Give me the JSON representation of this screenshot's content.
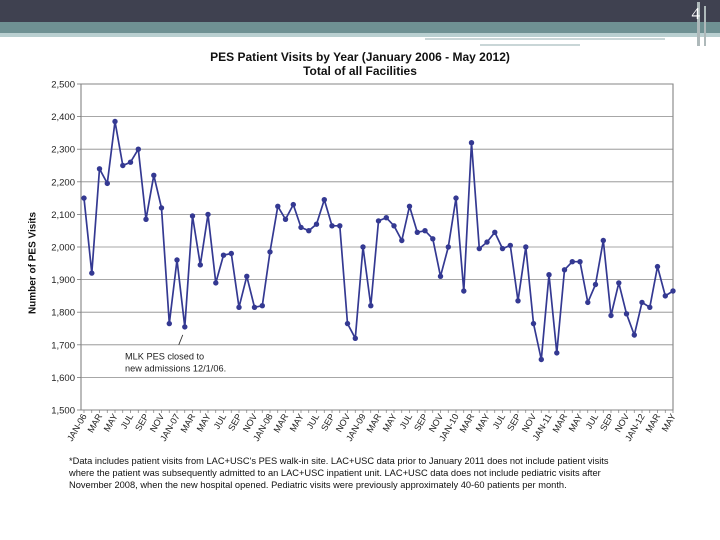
{
  "slide": {
    "number": "4"
  },
  "chart_data": {
    "type": "line",
    "title": "PES Patient Visits by Year (January 2006 -  May 2012)",
    "subtitle": "Total of all Facilities",
    "xlabel": "",
    "ylabel": "Number of PES Visits",
    "ylim": [
      1500,
      2500
    ],
    "yticks": [
      "1,500",
      "1,600",
      "1,700",
      "1,800",
      "1,900",
      "2,000",
      "2,100",
      "2,200",
      "2,300",
      "2,400",
      "2,500"
    ],
    "ytick_values": [
      1500,
      1600,
      1700,
      1800,
      1900,
      2000,
      2100,
      2200,
      2300,
      2400,
      2500
    ],
    "grid": true,
    "categories": [
      "JAN-06",
      "FEB",
      "MAR",
      "APR",
      "MAY",
      "JUN",
      "JUL",
      "AUG",
      "SEP",
      "OCT",
      "NOV",
      "DEC",
      "JAN-07",
      "FEB",
      "MAR",
      "APR",
      "MAY",
      "JUN",
      "JUL",
      "AUG",
      "SEP",
      "OCT",
      "NOV",
      "DEC",
      "JAN-08",
      "FEB",
      "MAR",
      "APR",
      "MAY",
      "JUN",
      "JUL",
      "AUG",
      "SEP",
      "OCT",
      "NOV",
      "DEC",
      "JAN-09",
      "FEB",
      "MAR",
      "APR",
      "MAY",
      "JUN",
      "JUL",
      "AUG",
      "SEP",
      "OCT",
      "NOV",
      "DEC",
      "JAN-10",
      "FEB",
      "MAR",
      "APR",
      "MAY",
      "JUN",
      "JUL",
      "AUG",
      "SEP",
      "OCT",
      "NOV",
      "DEC",
      "JAN-11",
      "FEB",
      "MAR",
      "APR",
      "MAY",
      "JUN",
      "JUL",
      "AUG",
      "SEP",
      "OCT",
      "NOV",
      "DEC",
      "JAN-12",
      "FEB",
      "MAR",
      "APR",
      "MAY"
    ],
    "xtick_labels": [
      "JAN-06",
      "MAR",
      "MAY",
      "JUL",
      "SEP",
      "NOV",
      "JAN-07",
      "MAR",
      "MAY",
      "JUL",
      "SEP",
      "NOV",
      "JAN-08",
      "MAR",
      "MAY",
      "JUL",
      "SEP",
      "NOV",
      "JAN-09",
      "MAR",
      "MAY",
      "JUL",
      "SEP",
      "NOV",
      "JAN-10",
      "MAR",
      "MAY",
      "JUL",
      "SEP",
      "NOV",
      "JAN-11",
      "MAR",
      "MAY",
      "JUL",
      "SEP",
      "NOV",
      "JAN-12",
      "MAR",
      "MAY"
    ],
    "series": [
      {
        "name": "Total of all Facilities",
        "color": "#343992",
        "values": [
          2150,
          1920,
          2240,
          2195,
          2385,
          2250,
          2260,
          2300,
          2085,
          2220,
          2120,
          1765,
          1960,
          1755,
          2095,
          1945,
          2100,
          1890,
          1975,
          1980,
          1815,
          1910,
          1815,
          1820,
          1985,
          2125,
          2085,
          2130,
          2060,
          2050,
          2070,
          2145,
          2065,
          2065,
          1765,
          1720,
          2000,
          1820,
          2080,
          2090,
          2065,
          2020,
          2125,
          2045,
          2050,
          2025,
          1910,
          2000,
          2150,
          1865,
          2320,
          1995,
          2015,
          2045,
          1995,
          2005,
          1835,
          2000,
          1765,
          1655,
          1915,
          1675,
          1930,
          1955,
          1955,
          1830,
          1885,
          2020,
          1790,
          1890,
          1795,
          1730,
          1830,
          1815,
          1940,
          1850,
          1865
        ]
      }
    ],
    "annotation": {
      "line1": "MLK PES closed to",
      "line2": "new admissions 12/1/06.",
      "at_category_index": 13
    },
    "footnote": "*Data includes patient visits from LAC+USC's PES walk-in site.  LAC+USC data  prior to January 2011 does not include patient visits\nwhere the patient was subsequently admitted to an LAC+USC inpatient unit.  LAC+USC data does not include pediatric visits after\nNovember 2008, when the new hospital opened.  Pediatric visits were previously approximately 40-60 patients per month."
  }
}
